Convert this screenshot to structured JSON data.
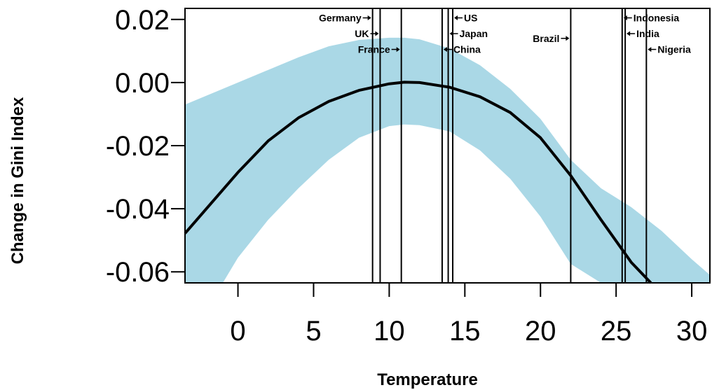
{
  "chart_data": {
    "type": "line",
    "xlabel": "Temperature",
    "ylabel": "Change in Gini Index",
    "xlim": [
      -3.5,
      31.2
    ],
    "ylim": [
      -0.0635,
      0.0235
    ],
    "xticks": [
      0,
      5,
      10,
      15,
      20,
      25,
      30
    ],
    "yticks": [
      -0.06,
      -0.04,
      -0.02,
      0.0,
      0.02
    ],
    "xtick_labels": [
      "0",
      "5",
      "10",
      "15",
      "20",
      "25",
      "30"
    ],
    "ytick_labels": [
      "-0.06",
      "-0.04",
      "-0.02",
      "0.00",
      "0.02"
    ],
    "band_color": "#aad8e6",
    "line_color": "#000000",
    "series": [
      {
        "x": [
          -3.5,
          -2,
          0,
          2,
          4,
          6,
          8,
          10,
          11,
          12,
          14,
          16,
          18,
          20,
          22,
          24,
          26,
          27.3
        ],
        "y": [
          -0.0478,
          -0.0395,
          -0.0285,
          -0.0185,
          -0.0112,
          -0.006,
          -0.0025,
          -0.0004,
          0.0001,
          0.0,
          -0.0015,
          -0.0045,
          -0.0095,
          -0.0175,
          -0.0295,
          -0.0435,
          -0.057,
          -0.0635
        ]
      }
    ],
    "confidence_band": {
      "x": [
        -3.5,
        -2,
        -1,
        0,
        2,
        4,
        6,
        8,
        10,
        11,
        12,
        14,
        16,
        18,
        20,
        22,
        24,
        26,
        28,
        30,
        31.2
      ],
      "upper": [
        -0.007,
        -0.004,
        -0.002,
        0.0,
        0.004,
        0.008,
        0.0115,
        0.0135,
        0.0142,
        0.0142,
        0.0137,
        0.0108,
        0.0055,
        -0.002,
        -0.0115,
        -0.0245,
        -0.0335,
        -0.0395,
        -0.047,
        -0.056,
        -0.061
      ],
      "lower": [
        -0.0635,
        -0.0635,
        -0.0635,
        -0.0555,
        -0.0435,
        -0.0335,
        -0.0245,
        -0.0175,
        -0.0138,
        -0.0133,
        -0.0135,
        -0.0155,
        -0.0215,
        -0.0305,
        -0.0425,
        -0.0575,
        -0.0635,
        -0.0635,
        -0.0635,
        -0.0635,
        -0.0635
      ]
    },
    "countries": [
      {
        "name": "Germany",
        "x": 8.9,
        "label_side": "left",
        "label_y": 0.0205
      },
      {
        "name": "UK",
        "x": 9.4,
        "label_side": "left",
        "label_y": 0.0155
      },
      {
        "name": "France",
        "x": 10.8,
        "label_side": "left",
        "label_y": 0.0105
      },
      {
        "name": "China",
        "x": 13.5,
        "label_side": "right",
        "label_y": 0.0105
      },
      {
        "name": "Japan",
        "x": 13.9,
        "label_side": "right",
        "label_y": 0.0155
      },
      {
        "name": "US",
        "x": 14.2,
        "label_side": "right",
        "label_y": 0.0205
      },
      {
        "name": "Brazil",
        "x": 22.0,
        "label_side": "left",
        "label_y": 0.014
      },
      {
        "name": "Indonesia",
        "x": 25.4,
        "label_side": "right",
        "label_y": 0.0205
      },
      {
        "name": "India",
        "x": 25.6,
        "label_side": "right",
        "label_y": 0.0155
      },
      {
        "name": "Nigeria",
        "x": 27.0,
        "label_side": "right",
        "label_y": 0.0105
      }
    ]
  }
}
